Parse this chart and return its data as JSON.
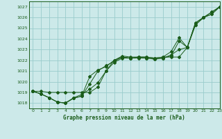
{
  "title": "Graphe pression niveau de la mer (hPa)",
  "bg_color": "#cce9e9",
  "grid_color": "#99cccc",
  "line_color": "#1a5c1a",
  "text_color": "#1a5c1a",
  "xlim": [
    -0.5,
    23
  ],
  "ylim": [
    1017.5,
    1027.5
  ],
  "yticks": [
    1018,
    1019,
    1020,
    1021,
    1022,
    1023,
    1024,
    1025,
    1026,
    1027
  ],
  "xticks": [
    0,
    1,
    2,
    3,
    4,
    5,
    6,
    7,
    8,
    9,
    10,
    11,
    12,
    13,
    14,
    15,
    16,
    17,
    18,
    19,
    20,
    21,
    22,
    23
  ],
  "series": [
    [
      1019.1,
      1019.1,
      1019.0,
      1019.0,
      1019.0,
      1019.0,
      1019.0,
      1019.0,
      1019.5,
      1021.0,
      1022.0,
      1022.3,
      1022.2,
      1022.3,
      1022.3,
      1022.2,
      1022.3,
      1022.3,
      1022.3,
      1023.2,
      1025.3,
      1026.0,
      1026.3,
      1027.0
    ],
    [
      1019.1,
      1018.85,
      1018.5,
      1018.1,
      1018.0,
      1018.5,
      1018.8,
      1019.3,
      1019.9,
      1021.0,
      1021.8,
      1022.2,
      1022.2,
      1022.3,
      1022.3,
      1022.2,
      1022.3,
      1022.8,
      1024.1,
      1023.2,
      1025.3,
      1026.0,
      1026.3,
      1027.0
    ],
    [
      1019.1,
      1018.85,
      1018.5,
      1018.1,
      1018.0,
      1018.45,
      1018.65,
      1019.8,
      1021.0,
      1021.5,
      1021.9,
      1022.3,
      1022.2,
      1022.2,
      1022.2,
      1022.1,
      1022.2,
      1022.5,
      1023.0,
      1023.2,
      1025.5,
      1026.0,
      1026.5,
      1027.0
    ],
    [
      1019.1,
      1018.85,
      1018.5,
      1018.1,
      1018.0,
      1018.45,
      1018.65,
      1020.5,
      1021.1,
      1021.4,
      1022.0,
      1022.4,
      1022.3,
      1022.3,
      1022.2,
      1022.1,
      1022.2,
      1022.4,
      1023.8,
      1023.2,
      1025.5,
      1026.0,
      1026.5,
      1027.0
    ]
  ]
}
